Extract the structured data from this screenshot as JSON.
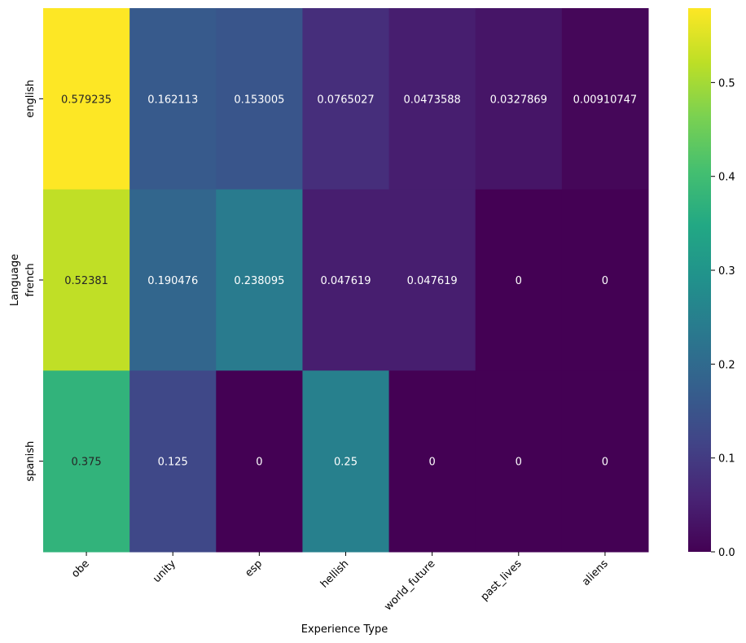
{
  "chart_data": {
    "type": "heatmap",
    "title": "",
    "xlabel": "Experience Type",
    "ylabel": "Language",
    "x_categories": [
      "obe",
      "unity",
      "esp",
      "hellish",
      "world_future",
      "past_lives",
      "aliens"
    ],
    "y_categories": [
      "english",
      "french",
      "spanish"
    ],
    "values": [
      [
        0.579235,
        0.162113,
        0.153005,
        0.0765027,
        0.0473588,
        0.0327869,
        0.00910747
      ],
      [
        0.52381,
        0.190476,
        0.238095,
        0.047619,
        0.047619,
        0,
        0
      ],
      [
        0.375,
        0.125,
        0,
        0.25,
        0,
        0,
        0
      ]
    ],
    "cell_labels": [
      [
        "0.579235",
        "0.162113",
        "0.153005",
        "0.0765027",
        "0.0473588",
        "0.0327869",
        "0.00910747"
      ],
      [
        "0.52381",
        "0.190476",
        "0.238095",
        "0.047619",
        "0.047619",
        "0",
        "0"
      ],
      [
        "0.375",
        "0.125",
        "0",
        "0.25",
        "0",
        "0",
        "0"
      ]
    ],
    "colormap": "viridis",
    "color_range": [
      0,
      0.579235
    ],
    "colorbar_ticks": [
      "0.0",
      "0.1",
      "0.2",
      "0.3",
      "0.4",
      "0.5"
    ],
    "colorbar_tick_values": [
      0,
      0.1,
      0.2,
      0.3,
      0.4,
      0.5
    ],
    "annotation_colors": {
      "on_light": "#262626",
      "on_dark": "#ffffff"
    },
    "grid": false,
    "legend": "colorbar-right"
  }
}
